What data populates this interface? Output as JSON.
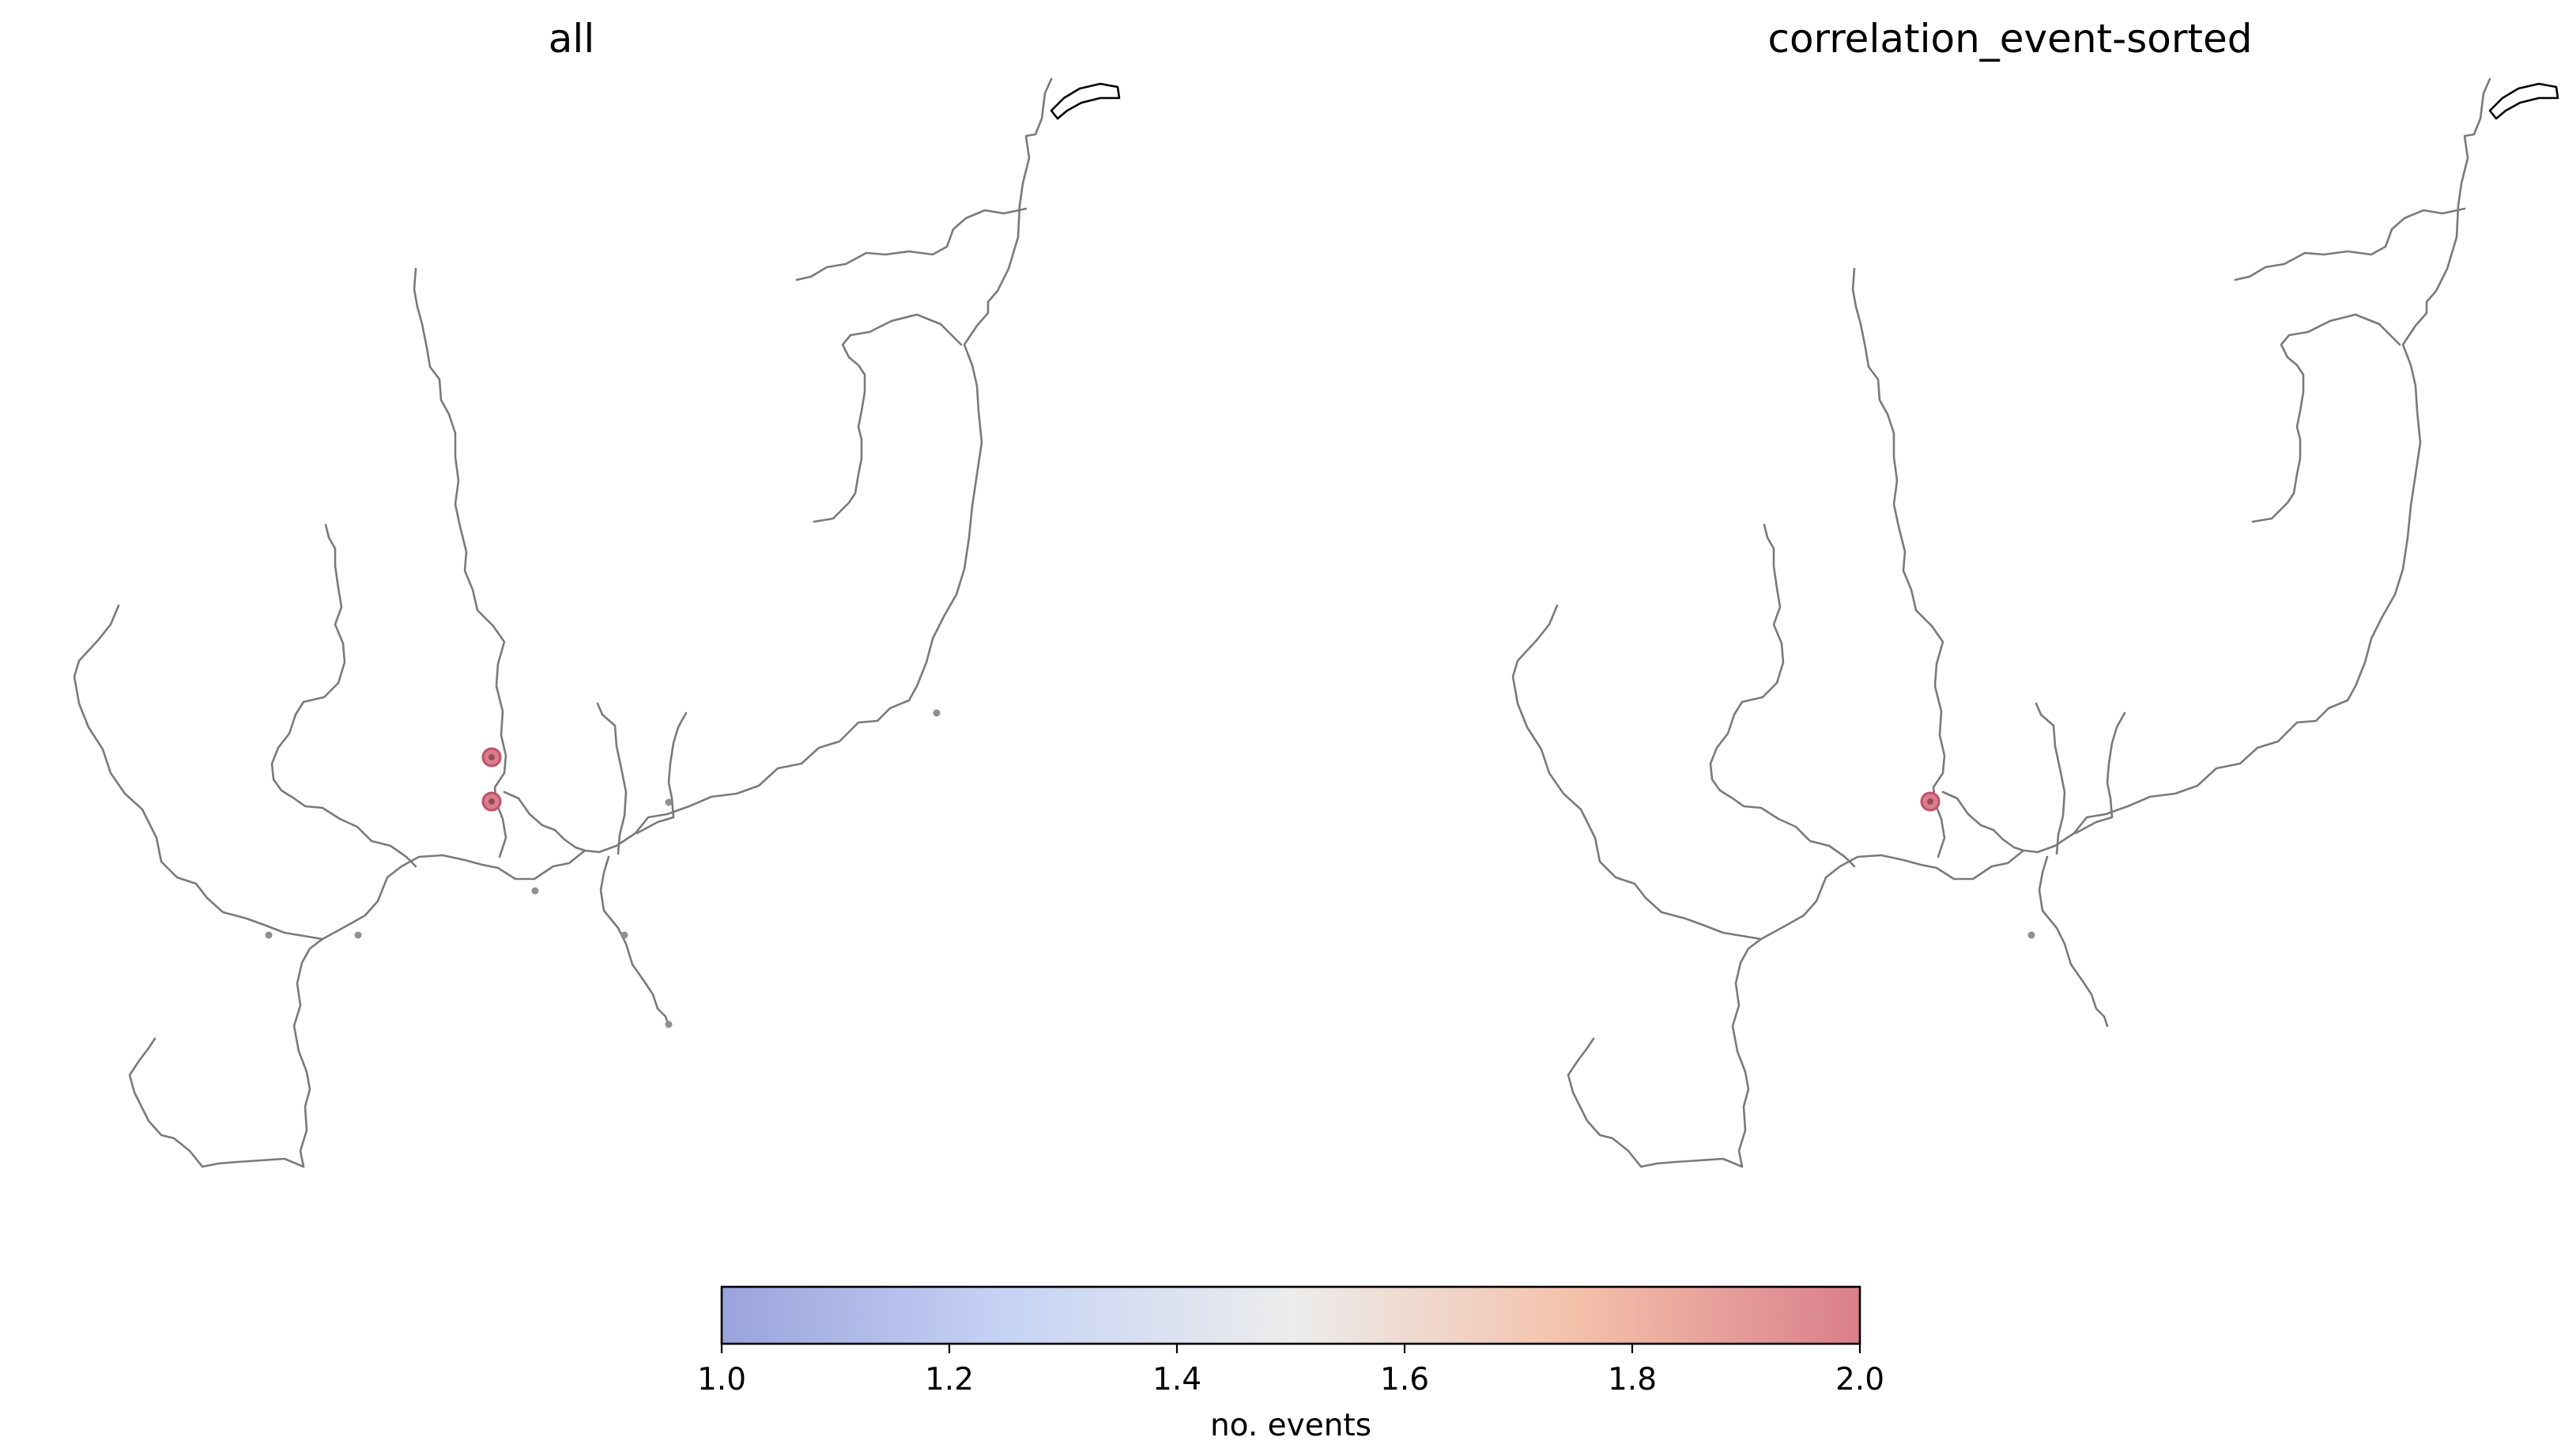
{
  "figure": {
    "panels": [
      {
        "title": "all",
        "stations": [
          {
            "events": 0
          },
          {
            "events": 0
          },
          {
            "events": 0
          },
          {
            "events": 0
          },
          {
            "events": 0
          },
          {
            "events": 0
          },
          {
            "events": 0
          },
          {
            "events": 2
          },
          {
            "events": 2
          }
        ]
      },
      {
        "title": "correlation_event-sorted",
        "stations": [
          {
            "events": 0
          },
          {
            "events": 2
          }
        ]
      }
    ],
    "colorbar": {
      "label": "no. events",
      "min": 1.0,
      "max": 2.0,
      "ticks": [
        "1.0",
        "1.2",
        "1.4",
        "1.6",
        "1.8",
        "2.0"
      ],
      "colormap": "coolwarm",
      "colors": {
        "low": "#9aa3dc",
        "mid": "#ececec",
        "high": "#d97f8b"
      }
    },
    "colors": {
      "river": "#7a7a7a",
      "coast": "#000000",
      "inactive_station": "#909090",
      "station_core": "#9c4a5a"
    }
  }
}
